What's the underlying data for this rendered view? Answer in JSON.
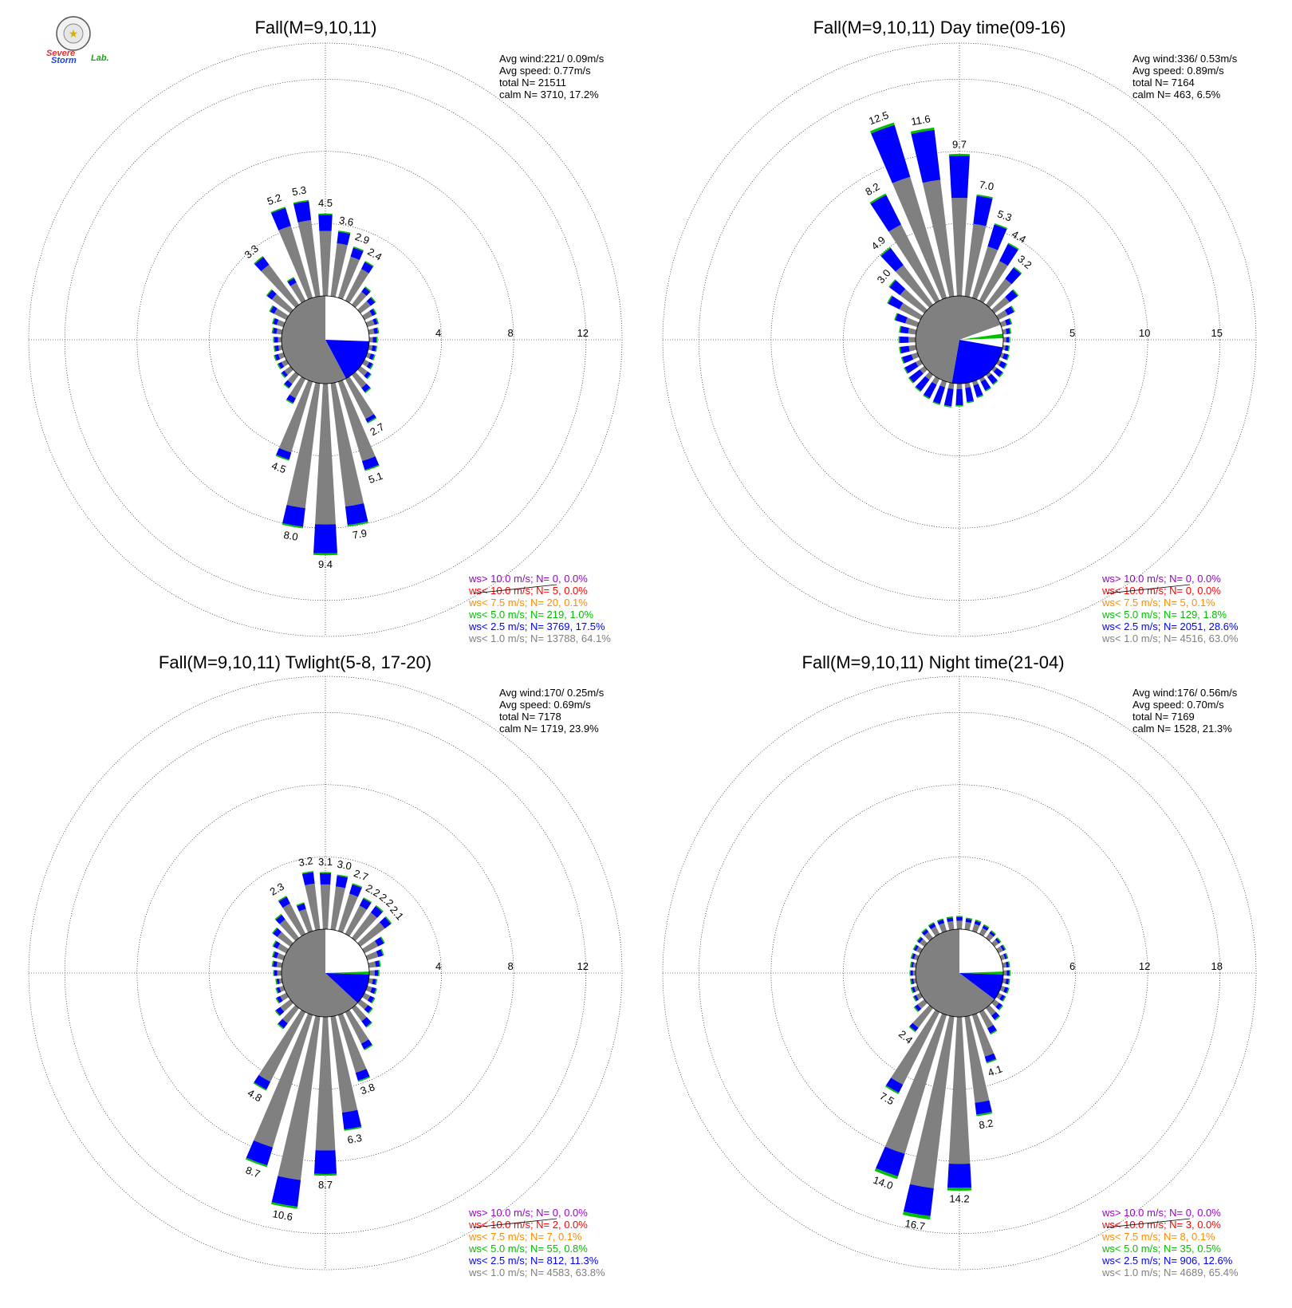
{
  "logo": {
    "line1": "Severe",
    "line2": "Storm",
    "line3": "Lab."
  },
  "colors": {
    "ws_lt_1": "#808080",
    "ws_lt_2_5": "#0000ff",
    "ws_lt_5": "#00c000",
    "ws_lt_7_5": "#ff8c00",
    "ws_lt_10": "#ff0000",
    "ws_gt_10": "#9900cc",
    "calm_fill": "#808080",
    "grid": "#000000"
  },
  "chart_data": [
    {
      "type": "wind-rose",
      "title": "Fall(M=9,10,11)",
      "stats": {
        "avg_wind": "Avg wind:221/ 0.09m/s",
        "avg_speed": "Avg speed: 0.77m/s",
        "total": "total N=        21511",
        "calm": "calm N=   3710,  17.2%"
      },
      "rings": [
        4,
        8,
        12
      ],
      "ring_labels": [
        "4",
        "8",
        "12"
      ],
      "rmax": 14,
      "calm_percent": 17.2,
      "pie": [
        {
          "from": 0,
          "to": 67,
          "color": "white"
        },
        {
          "from": 67,
          "to": 92,
          "color": "white"
        },
        {
          "from": 92,
          "to": 152,
          "color": "blue"
        },
        {
          "from": 152,
          "to": 360,
          "color": "gray"
        }
      ],
      "direction_bins": 36,
      "values": [
        4.5,
        3.6,
        2.9,
        2.4,
        1.2,
        1.0,
        0.7,
        0.6,
        0.5,
        0.4,
        0.4,
        0.4,
        0.5,
        0.7,
        1.2,
        2.7,
        5.1,
        7.9,
        9.4,
        8.0,
        4.5,
        1.5,
        0.9,
        0.6,
        0.5,
        0.5,
        0.4,
        0.4,
        0.5,
        0.6,
        1.0,
        1.6,
        3.3,
        1.4,
        5.2,
        5.3
      ],
      "blue_fraction": [
        0.2,
        0.18,
        0.18,
        0.18,
        0.25,
        0.3,
        0.3,
        0.3,
        0.4,
        0.5,
        0.5,
        0.5,
        0.4,
        0.3,
        0.25,
        0.08,
        0.1,
        0.13,
        0.17,
        0.13,
        0.09,
        0.2,
        0.3,
        0.3,
        0.4,
        0.4,
        0.5,
        0.5,
        0.4,
        0.35,
        0.25,
        0.2,
        0.16,
        0.2,
        0.2,
        0.2
      ],
      "labels": [
        "4.5",
        "3.6",
        "2.9",
        "2.4",
        "",
        "",
        "",
        "",
        "",
        "",
        "",
        "",
        "",
        "",
        "",
        "2.7",
        "5.1",
        "7.9",
        "9.4",
        "8.0",
        "4.5",
        "",
        "",
        "",
        "",
        "",
        "",
        "",
        "",
        "",
        "",
        "",
        "3.3",
        "",
        "5.2",
        "5.3"
      ],
      "legend": [
        {
          "key": "ws_gt_10",
          "text": "ws> 10.0 m/s; N=      0,  0.0%"
        },
        {
          "key": "ws_lt_10",
          "text": "ws< 10.0 m/s; N=      5,  0.0%"
        },
        {
          "key": "ws_lt_7_5",
          "text": "ws<  7.5 m/s; N=    20,  0.1%"
        },
        {
          "key": "ws_lt_5",
          "text": "ws<  5.0 m/s; N=   219,  1.0%"
        },
        {
          "key": "ws_lt_2_5",
          "text": "ws<  2.5 m/s; N=  3769, 17.5%"
        },
        {
          "key": "ws_lt_1",
          "text": "ws<  1.0 m/s; N= 13788, 64.1%"
        }
      ]
    },
    {
      "type": "wind-rose",
      "title": "Fall(M=9,10,11) Day time(09-16)",
      "stats": {
        "avg_wind": "Avg wind:336/ 0.53m/s",
        "avg_speed": "Avg speed: 0.89m/s",
        "total": "total N=        7164",
        "calm": "calm N=    463,   6.5%"
      },
      "rings": [
        5,
        10,
        15
      ],
      "ring_labels": [
        "5",
        "10",
        "15"
      ],
      "rmax": 17.5,
      "calm_percent": 6.5,
      "pie": [
        {
          "from": 0,
          "to": 70,
          "color": "gray"
        },
        {
          "from": 70,
          "to": 82,
          "color": "white"
        },
        {
          "from": 82,
          "to": 88,
          "color": "green"
        },
        {
          "from": 88,
          "to": 100,
          "color": "white"
        },
        {
          "from": 100,
          "to": 190,
          "color": "blue"
        },
        {
          "from": 190,
          "to": 360,
          "color": "gray"
        }
      ],
      "direction_bins": 36,
      "values": [
        9.7,
        7.0,
        5.3,
        4.4,
        3.2,
        2.0,
        1.2,
        0.7,
        0.5,
        0.4,
        0.4,
        0.5,
        0.6,
        0.7,
        0.8,
        0.9,
        1.1,
        1.3,
        1.5,
        1.6,
        1.6,
        1.5,
        1.4,
        1.3,
        1.2,
        1.1,
        1.1,
        1.1,
        1.1,
        1.6,
        2.5,
        3.0,
        4.9,
        8.2,
        12.5,
        11.6
      ],
      "blue_fraction": [
        0.3,
        0.28,
        0.3,
        0.3,
        0.3,
        0.35,
        0.4,
        0.45,
        0.5,
        0.5,
        0.55,
        0.6,
        0.65,
        0.7,
        0.75,
        0.75,
        0.75,
        0.75,
        0.75,
        0.75,
        0.75,
        0.7,
        0.7,
        0.7,
        0.7,
        0.6,
        0.55,
        0.55,
        0.5,
        0.45,
        0.35,
        0.3,
        0.3,
        0.28,
        0.3,
        0.3
      ],
      "labels": [
        "9.7",
        "7.0",
        "5.3",
        "4.4",
        "3.2",
        "",
        "",
        "",
        "",
        "",
        "",
        "",
        "",
        "",
        "",
        "",
        "",
        "",
        "",
        "",
        "",
        "",
        "",
        "",
        "",
        "",
        "",
        "",
        "",
        "",
        "",
        "3.0",
        "4.9",
        "8.2",
        "12.5",
        "11.6"
      ],
      "legend": [
        {
          "key": "ws_gt_10",
          "text": "ws> 10.0 m/s; N=      0,  0.0%"
        },
        {
          "key": "ws_lt_10",
          "text": "ws< 10.0 m/s; N=      0,  0.0%"
        },
        {
          "key": "ws_lt_7_5",
          "text": "ws<  7.5 m/s; N=      5,  0.1%"
        },
        {
          "key": "ws_lt_5",
          "text": "ws<  5.0 m/s; N=   129,  1.8%"
        },
        {
          "key": "ws_lt_2_5",
          "text": "ws<  2.5 m/s; N=  2051, 28.6%"
        },
        {
          "key": "ws_lt_1",
          "text": "ws<  1.0 m/s; N=  4516, 63.0%"
        }
      ]
    },
    {
      "type": "wind-rose",
      "title": "Fall(M=9,10,11) Twlight(5-8, 17-20)",
      "stats": {
        "avg_wind": "Avg wind:170/ 0.25m/s",
        "avg_speed": "Avg speed: 0.69m/s",
        "total": "total N=        7178",
        "calm": "calm N=   1719,  23.9%"
      },
      "rings": [
        4,
        8,
        12
      ],
      "ring_labels": [
        "4",
        "8",
        "12"
      ],
      "rmax": 14,
      "calm_percent": 23.9,
      "pie": [
        {
          "from": 0,
          "to": 88,
          "color": "white"
        },
        {
          "from": 88,
          "to": 92,
          "color": "green"
        },
        {
          "from": 92,
          "to": 133,
          "color": "blue"
        },
        {
          "from": 133,
          "to": 360,
          "color": "gray"
        }
      ],
      "direction_bins": 36,
      "values": [
        3.1,
        3.0,
        2.7,
        2.2,
        2.2,
        2.1,
        1.2,
        0.9,
        0.6,
        0.5,
        0.4,
        0.5,
        0.6,
        0.8,
        1.3,
        2.3,
        3.8,
        6.3,
        8.7,
        10.6,
        8.7,
        4.8,
        1.4,
        1.0,
        0.6,
        0.4,
        0.3,
        0.4,
        0.5,
        0.6,
        0.8,
        1.2,
        1.6,
        2.3,
        1.6,
        3.2
      ],
      "blue_fraction": [
        0.2,
        0.2,
        0.2,
        0.2,
        0.2,
        0.2,
        0.3,
        0.3,
        0.35,
        0.4,
        0.45,
        0.45,
        0.4,
        0.35,
        0.3,
        0.15,
        0.12,
        0.15,
        0.15,
        0.14,
        0.12,
        0.1,
        0.25,
        0.3,
        0.35,
        0.4,
        0.45,
        0.4,
        0.4,
        0.35,
        0.3,
        0.25,
        0.2,
        0.18,
        0.2,
        0.2
      ],
      "labels": [
        "3.1",
        "3.0",
        "2.7",
        "2.2",
        "2.2",
        "2.1",
        "",
        "",
        "",
        "",
        "",
        "",
        "",
        "",
        "",
        "",
        "3.8",
        "6.3",
        "8.7",
        "10.6",
        "8.7",
        "4.8",
        "",
        "",
        "",
        "",
        "",
        "",
        "",
        "",
        "",
        "",
        "",
        "2.3",
        "",
        "3.2"
      ],
      "legend": [
        {
          "key": "ws_gt_10",
          "text": "ws> 10.0 m/s; N=      0,  0.0%"
        },
        {
          "key": "ws_lt_10",
          "text": "ws< 10.0 m/s; N=      2,  0.0%"
        },
        {
          "key": "ws_lt_7_5",
          "text": "ws<  7.5 m/s; N=      7,  0.1%"
        },
        {
          "key": "ws_lt_5",
          "text": "ws<  5.0 m/s; N=     55,  0.8%"
        },
        {
          "key": "ws_lt_2_5",
          "text": "ws<  2.5 m/s; N=   812, 11.3%"
        },
        {
          "key": "ws_lt_1",
          "text": "ws<  1.0 m/s; N=  4583, 63.8%"
        }
      ]
    },
    {
      "type": "wind-rose",
      "title": "Fall(M=9,10,11) Night time(21-04)",
      "stats": {
        "avg_wind": "Avg wind:176/ 0.56m/s",
        "avg_speed": "Avg speed: 0.70m/s",
        "total": "total N=        7169",
        "calm": "calm N=   1528,  21.3%"
      },
      "rings": [
        6,
        12,
        18
      ],
      "ring_labels": [
        "6",
        "12",
        "18"
      ],
      "rmax": 21,
      "calm_percent": 21.3,
      "pie": [
        {
          "from": 0,
          "to": 88,
          "color": "white"
        },
        {
          "from": 88,
          "to": 92,
          "color": "green"
        },
        {
          "from": 92,
          "to": 127,
          "color": "blue"
        },
        {
          "from": 127,
          "to": 360,
          "color": "gray"
        }
      ],
      "direction_bins": 36,
      "values": [
        1.0,
        0.9,
        0.9,
        0.8,
        0.7,
        0.6,
        0.6,
        0.5,
        0.5,
        0.5,
        0.5,
        0.6,
        0.6,
        0.8,
        1.2,
        2.0,
        4.1,
        8.2,
        14.2,
        16.7,
        14.0,
        7.5,
        2.4,
        1.0,
        0.6,
        0.5,
        0.4,
        0.4,
        0.4,
        0.5,
        0.6,
        0.7,
        0.9,
        1.0,
        1.0,
        1.0
      ],
      "blue_fraction": [
        0.3,
        0.3,
        0.3,
        0.3,
        0.3,
        0.3,
        0.3,
        0.35,
        0.4,
        0.4,
        0.45,
        0.45,
        0.45,
        0.4,
        0.35,
        0.25,
        0.12,
        0.12,
        0.14,
        0.14,
        0.14,
        0.1,
        0.15,
        0.3,
        0.35,
        0.4,
        0.45,
        0.45,
        0.4,
        0.4,
        0.35,
        0.3,
        0.3,
        0.3,
        0.3,
        0.3
      ],
      "labels": [
        "",
        "",
        "",
        "",
        "",
        "",
        "",
        "",
        "",
        "",
        "",
        "",
        "",
        "",
        "",
        "",
        "4.1",
        "8.2",
        "14.2",
        "16.7",
        "14.0",
        "7.5",
        "2.4",
        "",
        "",
        "",
        "",
        "",
        "",
        "",
        "",
        "",
        "",
        "",
        "",
        ""
      ],
      "legend": [
        {
          "key": "ws_gt_10",
          "text": "ws> 10.0 m/s; N=      0,  0.0%"
        },
        {
          "key": "ws_lt_10",
          "text": "ws< 10.0 m/s; N=      3,  0.0%"
        },
        {
          "key": "ws_lt_7_5",
          "text": "ws<  7.5 m/s; N=      8,  0.1%"
        },
        {
          "key": "ws_lt_5",
          "text": "ws<  5.0 m/s; N=     35,  0.5%"
        },
        {
          "key": "ws_lt_2_5",
          "text": "ws<  2.5 m/s; N=   906, 12.6%"
        },
        {
          "key": "ws_lt_1",
          "text": "ws<  1.0 m/s; N=  4689, 65.4%"
        }
      ]
    }
  ]
}
